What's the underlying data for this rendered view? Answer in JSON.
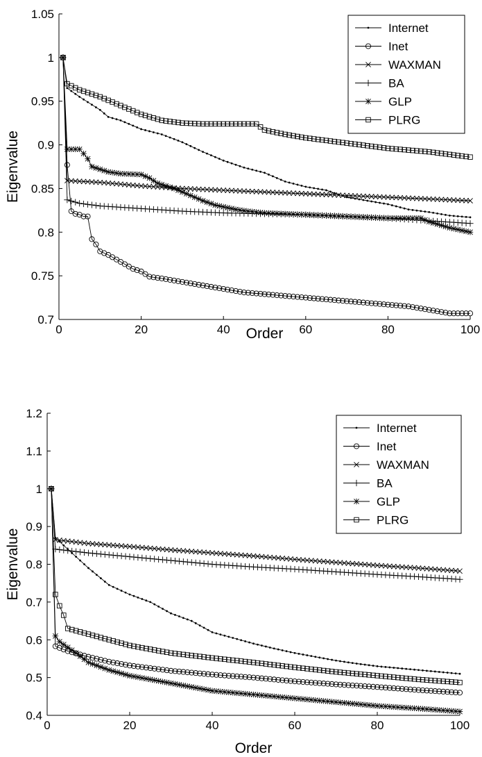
{
  "chart_data": [
    {
      "type": "line",
      "xlabel": "Order",
      "ylabel": "Eigenvalue",
      "xlim": [
        0,
        100
      ],
      "ylim": [
        0.7,
        1.05
      ],
      "xticks": [
        0,
        20,
        40,
        60,
        80,
        100
      ],
      "yticks": [
        0.7,
        0.75,
        0.8,
        0.85,
        0.9,
        0.95,
        1,
        1.05
      ],
      "xtick_labels": [
        "0",
        "20",
        "40",
        "60",
        "80",
        "100"
      ],
      "ytick_labels": [
        "0.7",
        "0.75",
        "0.8",
        "0.85",
        "0.9",
        "0.95",
        "1",
        "1.05"
      ],
      "legend_position": "top-right",
      "grid": false,
      "series": [
        {
          "name": "Internet",
          "marker": "dot",
          "points": [
            [
              1,
              1
            ],
            [
              2,
              0.965
            ],
            [
              5,
              0.955
            ],
            [
              10,
              0.94
            ],
            [
              12,
              0.932
            ],
            [
              15,
              0.928
            ],
            [
              20,
              0.918
            ],
            [
              25,
              0.912
            ],
            [
              30,
              0.903
            ],
            [
              35,
              0.892
            ],
            [
              40,
              0.882
            ],
            [
              45,
              0.874
            ],
            [
              50,
              0.868
            ],
            [
              55,
              0.858
            ],
            [
              60,
              0.852
            ],
            [
              65,
              0.848
            ],
            [
              70,
              0.84
            ],
            [
              75,
              0.836
            ],
            [
              80,
              0.832
            ],
            [
              85,
              0.826
            ],
            [
              90,
              0.823
            ],
            [
              95,
              0.819
            ],
            [
              100,
              0.817
            ]
          ]
        },
        {
          "name": "Inet",
          "marker": "circle",
          "points": [
            [
              1,
              1
            ],
            [
              2,
              0.877
            ],
            [
              3,
              0.824
            ],
            [
              4,
              0.821
            ],
            [
              5,
              0.82
            ],
            [
              6,
              0.818
            ],
            [
              7,
              0.818
            ],
            [
              8,
              0.792
            ],
            [
              9,
              0.786
            ],
            [
              10,
              0.778
            ],
            [
              12,
              0.774
            ],
            [
              15,
              0.766
            ],
            [
              18,
              0.758
            ],
            [
              20,
              0.755
            ],
            [
              22,
              0.749
            ],
            [
              25,
              0.747
            ],
            [
              30,
              0.743
            ],
            [
              35,
              0.739
            ],
            [
              40,
              0.735
            ],
            [
              45,
              0.731
            ],
            [
              50,
              0.729
            ],
            [
              55,
              0.727
            ],
            [
              60,
              0.725
            ],
            [
              65,
              0.723
            ],
            [
              70,
              0.721
            ],
            [
              75,
              0.719
            ],
            [
              80,
              0.717
            ],
            [
              85,
              0.715
            ],
            [
              90,
              0.711
            ],
            [
              95,
              0.707
            ],
            [
              100,
              0.707
            ]
          ]
        },
        {
          "name": "WAXMAN",
          "marker": "x",
          "points": [
            [
              1,
              1
            ],
            [
              2,
              0.859
            ],
            [
              10,
              0.857
            ],
            [
              20,
              0.853
            ],
            [
              30,
              0.85
            ],
            [
              40,
              0.848
            ],
            [
              50,
              0.846
            ],
            [
              60,
              0.844
            ],
            [
              70,
              0.842
            ],
            [
              80,
              0.84
            ],
            [
              90,
              0.838
            ],
            [
              100,
              0.836
            ]
          ]
        },
        {
          "name": "BA",
          "marker": "plus",
          "points": [
            [
              1,
              1
            ],
            [
              2,
              0.837
            ],
            [
              5,
              0.833
            ],
            [
              10,
              0.83
            ],
            [
              20,
              0.827
            ],
            [
              30,
              0.824
            ],
            [
              40,
              0.822
            ],
            [
              50,
              0.821
            ],
            [
              60,
              0.82
            ],
            [
              70,
              0.818
            ],
            [
              80,
              0.816
            ],
            [
              90,
              0.813
            ],
            [
              100,
              0.81
            ]
          ]
        },
        {
          "name": "GLP",
          "marker": "star",
          "points": [
            [
              1,
              1
            ],
            [
              2,
              0.895
            ],
            [
              5,
              0.895
            ],
            [
              6,
              0.89
            ],
            [
              7,
              0.884
            ],
            [
              8,
              0.875
            ],
            [
              10,
              0.872
            ],
            [
              12,
              0.869
            ],
            [
              15,
              0.867
            ],
            [
              20,
              0.866
            ],
            [
              22,
              0.862
            ],
            [
              24,
              0.856
            ],
            [
              26,
              0.853
            ],
            [
              28,
              0.85
            ],
            [
              30,
              0.846
            ],
            [
              32,
              0.842
            ],
            [
              35,
              0.836
            ],
            [
              38,
              0.831
            ],
            [
              40,
              0.829
            ],
            [
              43,
              0.826
            ],
            [
              46,
              0.824
            ],
            [
              50,
              0.822
            ],
            [
              60,
              0.82
            ],
            [
              70,
              0.818
            ],
            [
              80,
              0.816
            ],
            [
              88,
              0.816
            ],
            [
              90,
              0.812
            ],
            [
              95,
              0.805
            ],
            [
              100,
              0.8
            ]
          ]
        },
        {
          "name": "PLRG",
          "marker": "square",
          "points": [
            [
              1,
              1
            ],
            [
              2,
              0.97
            ],
            [
              5,
              0.963
            ],
            [
              10,
              0.955
            ],
            [
              15,
              0.945
            ],
            [
              20,
              0.935
            ],
            [
              25,
              0.928
            ],
            [
              30,
              0.925
            ],
            [
              35,
              0.924
            ],
            [
              40,
              0.924
            ],
            [
              45,
              0.924
            ],
            [
              48,
              0.924
            ],
            [
              50,
              0.917
            ],
            [
              55,
              0.912
            ],
            [
              60,
              0.908
            ],
            [
              65,
              0.905
            ],
            [
              70,
              0.902
            ],
            [
              75,
              0.899
            ],
            [
              80,
              0.896
            ],
            [
              85,
              0.894
            ],
            [
              90,
              0.892
            ],
            [
              95,
              0.889
            ],
            [
              100,
              0.886
            ]
          ]
        }
      ]
    },
    {
      "type": "line",
      "xlabel": "Order",
      "ylabel": "Eigenvalue",
      "xlim": [
        0,
        100
      ],
      "ylim": [
        0.4,
        1.2
      ],
      "xticks": [
        0,
        20,
        40,
        60,
        80,
        100
      ],
      "yticks": [
        0.4,
        0.5,
        0.6,
        0.7,
        0.8,
        0.9,
        1,
        1.1,
        1.2
      ],
      "xtick_labels": [
        "0",
        "20",
        "40",
        "60",
        "80",
        "100"
      ],
      "ytick_labels": [
        "0.4",
        "0.5",
        "0.6",
        "0.7",
        "0.8",
        "0.9",
        "1",
        "1.1",
        "1.2"
      ],
      "legend_position": "top-right",
      "grid": false,
      "series": [
        {
          "name": "Internet",
          "marker": "dot",
          "points": [
            [
              1,
              1
            ],
            [
              2,
              0.87
            ],
            [
              5,
              0.84
            ],
            [
              10,
              0.79
            ],
            [
              15,
              0.745
            ],
            [
              20,
              0.72
            ],
            [
              25,
              0.7
            ],
            [
              30,
              0.67
            ],
            [
              35,
              0.65
            ],
            [
              40,
              0.62
            ],
            [
              45,
              0.605
            ],
            [
              50,
              0.59
            ],
            [
              55,
              0.577
            ],
            [
              60,
              0.565
            ],
            [
              65,
              0.555
            ],
            [
              70,
              0.545
            ],
            [
              75,
              0.537
            ],
            [
              80,
              0.53
            ],
            [
              85,
              0.525
            ],
            [
              90,
              0.52
            ],
            [
              95,
              0.515
            ],
            [
              100,
              0.51
            ]
          ]
        },
        {
          "name": "Inet",
          "marker": "circle",
          "points": [
            [
              1,
              1
            ],
            [
              2,
              0.583
            ],
            [
              5,
              0.57
            ],
            [
              10,
              0.555
            ],
            [
              15,
              0.542
            ],
            [
              20,
              0.532
            ],
            [
              25,
              0.525
            ],
            [
              30,
              0.518
            ],
            [
              40,
              0.508
            ],
            [
              50,
              0.5
            ],
            [
              60,
              0.49
            ],
            [
              70,
              0.482
            ],
            [
              80,
              0.475
            ],
            [
              90,
              0.467
            ],
            [
              100,
              0.46
            ]
          ]
        },
        {
          "name": "WAXMAN",
          "marker": "x",
          "points": [
            [
              1,
              1
            ],
            [
              2,
              0.865
            ],
            [
              10,
              0.855
            ],
            [
              20,
              0.847
            ],
            [
              30,
              0.838
            ],
            [
              40,
              0.83
            ],
            [
              50,
              0.822
            ],
            [
              60,
              0.813
            ],
            [
              70,
              0.805
            ],
            [
              80,
              0.797
            ],
            [
              90,
              0.79
            ],
            [
              100,
              0.782
            ]
          ]
        },
        {
          "name": "BA",
          "marker": "plus",
          "points": [
            [
              1,
              1
            ],
            [
              2,
              0.84
            ],
            [
              10,
              0.83
            ],
            [
              20,
              0.82
            ],
            [
              30,
              0.81
            ],
            [
              40,
              0.8
            ],
            [
              50,
              0.793
            ],
            [
              60,
              0.787
            ],
            [
              70,
              0.78
            ],
            [
              80,
              0.773
            ],
            [
              90,
              0.767
            ],
            [
              100,
              0.76
            ]
          ]
        },
        {
          "name": "GLP",
          "marker": "star",
          "points": [
            [
              1,
              1
            ],
            [
              2,
              0.61
            ],
            [
              3,
              0.595
            ],
            [
              5,
              0.58
            ],
            [
              7,
              0.565
            ],
            [
              10,
              0.54
            ],
            [
              15,
              0.52
            ],
            [
              20,
              0.505
            ],
            [
              30,
              0.485
            ],
            [
              40,
              0.465
            ],
            [
              50,
              0.455
            ],
            [
              60,
              0.445
            ],
            [
              70,
              0.435
            ],
            [
              80,
              0.425
            ],
            [
              90,
              0.418
            ],
            [
              100,
              0.41
            ]
          ]
        },
        {
          "name": "PLRG",
          "marker": "square",
          "points": [
            [
              1,
              1
            ],
            [
              2,
              0.72
            ],
            [
              3,
              0.69
            ],
            [
              4,
              0.665
            ],
            [
              5,
              0.63
            ],
            [
              10,
              0.615
            ],
            [
              15,
              0.6
            ],
            [
              20,
              0.585
            ],
            [
              30,
              0.565
            ],
            [
              40,
              0.552
            ],
            [
              50,
              0.54
            ],
            [
              60,
              0.527
            ],
            [
              70,
              0.515
            ],
            [
              80,
              0.505
            ],
            [
              90,
              0.495
            ],
            [
              100,
              0.487
            ]
          ]
        }
      ]
    }
  ]
}
